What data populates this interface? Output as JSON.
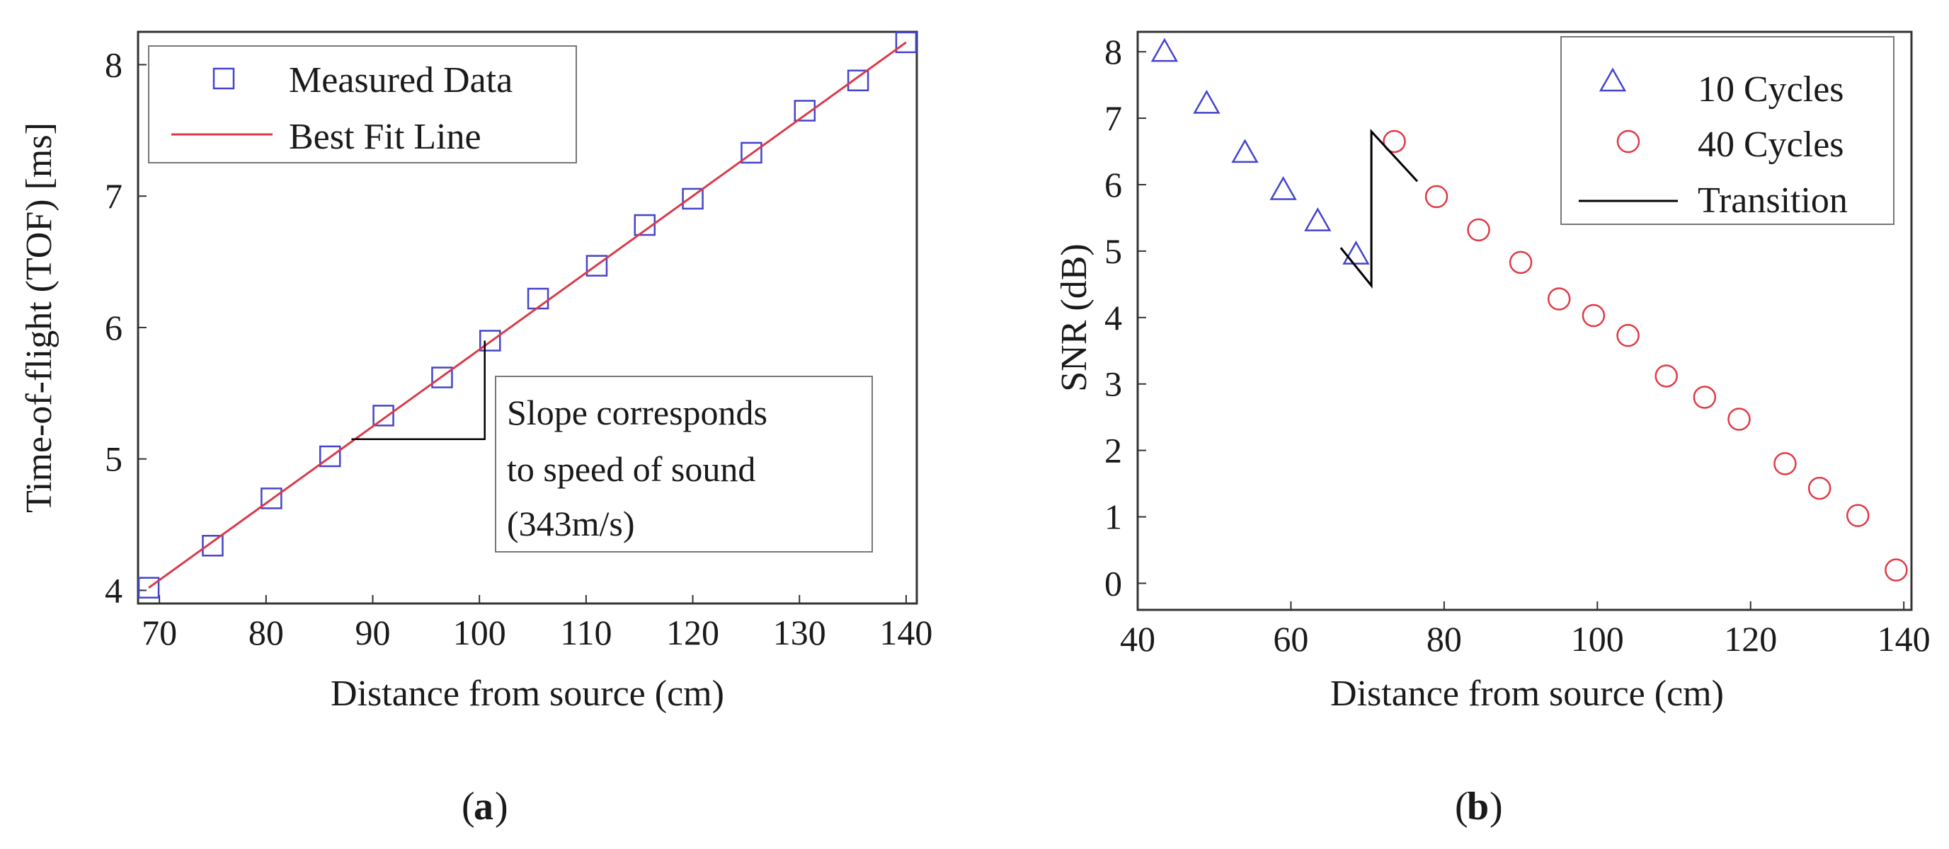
{
  "panels": {
    "a": "a",
    "b": "b"
  },
  "chart_data": [
    {
      "type": "scatter",
      "xlabel": "Distance from source (cm)",
      "ylabel": "Time-of-flight (TOF) [ms]",
      "xlim": [
        68,
        141
      ],
      "ylim": [
        3.9,
        8.25
      ],
      "xticks": [
        70,
        80,
        90,
        100,
        110,
        120,
        130,
        140
      ],
      "yticks": [
        4,
        5,
        6,
        7,
        8
      ],
      "series": [
        {
          "name": "Measured Data",
          "marker": "square",
          "color": "#4444cc",
          "x": [
            69,
            75,
            80.5,
            86,
            91,
            96.5,
            101,
            105.5,
            111,
            115.5,
            120,
            125.5,
            130.5,
            135.5,
            140
          ],
          "y": [
            4.02,
            4.34,
            4.7,
            5.02,
            5.33,
            5.62,
            5.9,
            6.22,
            6.47,
            6.78,
            6.98,
            7.33,
            7.65,
            7.88,
            8.17
          ]
        },
        {
          "name": "Best Fit Line",
          "style": "line",
          "color": "#d93a4a",
          "x": [
            69,
            140
          ],
          "y": [
            4.02,
            8.17
          ]
        }
      ],
      "annotation": {
        "lines": [
          "Slope corresponds",
          "to speed of sound",
          "(343m/s)"
        ],
        "triangle": {
          "x0": 88,
          "x1": 100.5,
          "y0": 5.15,
          "y1": 5.9
        }
      },
      "legend_position": "top-left"
    },
    {
      "type": "scatter",
      "xlabel": "Distance from source (cm)",
      "ylabel": "SNR (dB)",
      "xlim": [
        40,
        141
      ],
      "ylim": [
        -0.4,
        8.3
      ],
      "xticks": [
        40,
        60,
        80,
        100,
        120,
        140
      ],
      "yticks": [
        0,
        1,
        2,
        3,
        4,
        5,
        6,
        7,
        8
      ],
      "series": [
        {
          "name": "10 Cycles",
          "marker": "triangle",
          "color": "#4444cc",
          "x": [
            43.5,
            49,
            54,
            59,
            63.5,
            68.5
          ],
          "y": [
            8.0,
            7.22,
            6.48,
            5.92,
            5.45,
            4.95
          ]
        },
        {
          "name": "40 Cycles",
          "marker": "circle",
          "color": "#e03a45",
          "x": [
            73.5,
            79,
            84.5,
            90,
            95,
            99.5,
            104,
            109,
            114,
            118.5,
            124.5,
            129,
            134,
            139
          ],
          "y": [
            6.65,
            5.82,
            5.32,
            4.83,
            4.28,
            4.03,
            3.73,
            3.12,
            2.8,
            2.47,
            1.8,
            1.43,
            1.02,
            0.2
          ]
        },
        {
          "name": "Transition",
          "style": "line",
          "color": "#000000",
          "x": [
            66.5,
            70.5,
            70.5,
            76.5
          ],
          "y": [
            5.05,
            4.48,
            6.8,
            6.05
          ]
        }
      ],
      "legend_position": "top-right"
    }
  ]
}
